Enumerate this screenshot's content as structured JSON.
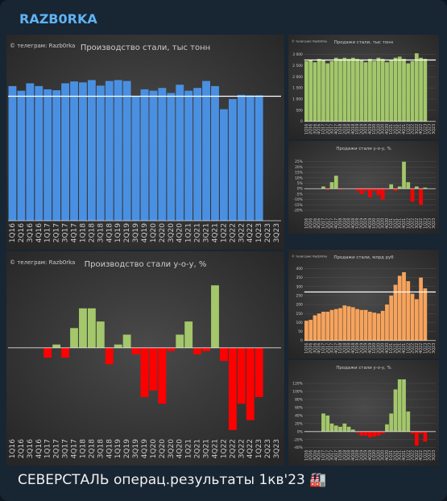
{
  "channel": "RAZB0RKA",
  "caption": "СЕВЕРСТАЛЬ операц.результаты 1кв'23 🏭",
  "chart_data": [
    {
      "type": "bar",
      "title": "Производство стали, тыс тонн",
      "watermark": "© телеграм: Razb0rka",
      "color": "#4a90e2",
      "categories": [
        "1Q16",
        "2Q16",
        "3Q16",
        "4Q16",
        "1Q17",
        "2Q17",
        "3Q17",
        "4Q17",
        "1Q18",
        "2Q18",
        "3Q18",
        "4Q18",
        "1Q19",
        "2Q19",
        "3Q19",
        "4Q19",
        "1Q20",
        "2Q20",
        "3Q20",
        "4Q20",
        "1Q21",
        "2Q21",
        "3Q21",
        "4Q21",
        "1Q22",
        "2Q22",
        "3Q22",
        "4Q22",
        "1Q23",
        "2Q23",
        "3Q23"
      ],
      "values": [
        2910,
        2810,
        2970,
        2910,
        2840,
        2820,
        2970,
        3010,
        2990,
        3040,
        2920,
        3020,
        3040,
        3020,
        2690,
        2840,
        2810,
        2870,
        2760,
        2940,
        2810,
        2870,
        3020,
        2910,
        2410,
        2630,
        2720,
        2710,
        2710,
        null,
        null
      ],
      "reference_line": 2690,
      "ylim": [
        0,
        3500
      ]
    },
    {
      "type": "bar",
      "title": "Производство стали у-о-у, %",
      "watermark": "© телеграм: Razb0rka",
      "color": "#a3c76a",
      "negative_color": "#ff0000",
      "categories": [
        "1Q16",
        "2Q16",
        "3Q16",
        "4Q16",
        "1Q17",
        "2Q17",
        "3Q17",
        "4Q17",
        "1Q18",
        "2Q18",
        "3Q18",
        "4Q18",
        "1Q19",
        "2Q19",
        "3Q19",
        "4Q19",
        "1Q20",
        "2Q20",
        "3Q20",
        "4Q20",
        "1Q21",
        "2Q21",
        "3Q21",
        "4Q21",
        "1Q22",
        "2Q22",
        "3Q22",
        "4Q22",
        "1Q23",
        "2Q23",
        "3Q23"
      ],
      "values": [
        null,
        null,
        null,
        null,
        -3,
        1,
        -3,
        6,
        12,
        12,
        8,
        -5,
        1,
        4,
        -2,
        -15,
        -13,
        -17,
        -1,
        4,
        8,
        -2,
        -1,
        19,
        -4,
        -25,
        -17,
        -22,
        -15,
        null,
        null
      ],
      "ylim": [
        -27,
        22
      ]
    },
    {
      "type": "bar",
      "title": "Продажи стали, тыс тонн",
      "watermark": "© телеграм: Razb0rka",
      "color": "#a3c76a",
      "categories": [
        "1Q16",
        "2Q16",
        "3Q16",
        "4Q16",
        "1Q17",
        "2Q17",
        "3Q17",
        "4Q17",
        "1Q18",
        "2Q18",
        "3Q18",
        "4Q18",
        "1Q19",
        "2Q19",
        "3Q19",
        "4Q19",
        "1Q20",
        "2Q20",
        "3Q20",
        "4Q20",
        "1Q21",
        "2Q21",
        "3Q21",
        "4Q21",
        "1Q22",
        "2Q22",
        "3Q22",
        "4Q22",
        "1Q23",
        "2Q23",
        "3Q23"
      ],
      "values": [
        2700,
        2750,
        2650,
        2800,
        2750,
        2600,
        2700,
        2850,
        2800,
        2850,
        2800,
        2850,
        2800,
        2750,
        2650,
        2800,
        2700,
        2850,
        2800,
        2650,
        2750,
        2850,
        2900,
        2800,
        2600,
        2700,
        3050,
        2850,
        2800,
        null,
        null
      ],
      "reference_line": 2750,
      "ylim": [
        0,
        3200
      ],
      "yticks": [
        0,
        500,
        {
          "value": 1000,
          "label": "1 000"
        },
        {
          "value": 1500,
          "label": "1 500"
        },
        {
          "value": 2000,
          "label": "2 000"
        },
        {
          "value": 2500,
          "label": "2 500"
        },
        {
          "value": 3000,
          "label": "3 000"
        }
      ]
    },
    {
      "type": "bar",
      "title": "Продажи стали у-о-у, %",
      "color": "#a3c76a",
      "negative_color": "#ff0000",
      "categories": [
        "1Q16",
        "2Q16",
        "3Q16",
        "4Q16",
        "1Q17",
        "2Q17",
        "3Q17",
        "4Q17",
        "1Q18",
        "2Q18",
        "3Q18",
        "4Q18",
        "1Q19",
        "2Q19",
        "3Q19",
        "4Q19",
        "1Q20",
        "2Q20",
        "3Q20",
        "4Q20",
        "1Q21",
        "2Q21",
        "3Q21",
        "4Q21",
        "1Q22",
        "2Q22",
        "3Q22",
        "4Q22",
        "1Q23",
        "2Q23",
        "3Q23"
      ],
      "values": [
        null,
        null,
        null,
        null,
        2,
        -1,
        6,
        12,
        -1,
        0,
        0,
        0,
        -2,
        -5,
        -2,
        -8,
        -2,
        -6,
        -10,
        -1,
        4,
        -2,
        2,
        25,
        6,
        -12,
        2,
        -15,
        1,
        null,
        null
      ],
      "ylim": [
        -25,
        30
      ],
      "yticks": [
        {
          "value": -20,
          "label": "-20%"
        },
        {
          "value": -15,
          "label": "-15%"
        },
        {
          "value": -10,
          "label": "-10%"
        },
        {
          "value": -5,
          "label": "-5%"
        },
        {
          "value": 0,
          "label": "0%"
        },
        {
          "value": 5,
          "label": "5%"
        },
        {
          "value": 10,
          "label": "10%"
        },
        {
          "value": 15,
          "label": "15%"
        },
        {
          "value": 20,
          "label": "20%"
        },
        {
          "value": 25,
          "label": "25%"
        }
      ]
    },
    {
      "type": "bar",
      "title": "Продажи стали, млрд руб",
      "watermark": "© телеграм: Razb0rka",
      "color": "#f7a35c",
      "categories": [
        "1Q16",
        "2Q16",
        "3Q16",
        "4Q16",
        "1Q17",
        "2Q17",
        "3Q17",
        "4Q17",
        "1Q18",
        "2Q18",
        "3Q18",
        "4Q18",
        "1Q19",
        "2Q19",
        "3Q19",
        "4Q19",
        "1Q20",
        "2Q20",
        "3Q20",
        "4Q20",
        "1Q21",
        "2Q21",
        "3Q21",
        "4Q21",
        "1Q22",
        "2Q22",
        "3Q22",
        "4Q22",
        "1Q23",
        "2Q23",
        "3Q23"
      ],
      "values": [
        110,
        115,
        140,
        150,
        160,
        160,
        170,
        175,
        180,
        195,
        190,
        185,
        175,
        170,
        170,
        160,
        155,
        150,
        165,
        200,
        250,
        310,
        360,
        380,
        330,
        260,
        230,
        350,
        290,
        null,
        null
      ],
      "reference_line": 270,
      "ylim": [
        0,
        420
      ],
      "yticks": [
        0,
        50,
        100,
        150,
        200,
        250,
        300,
        350,
        400
      ]
    },
    {
      "type": "bar",
      "title": "Продажи стали у-о-у, %",
      "color": "#a3c76a",
      "negative_color": "#ff0000",
      "categories": [
        "1Q16",
        "2Q16",
        "3Q16",
        "4Q16",
        "1Q17",
        "2Q17",
        "3Q17",
        "4Q17",
        "1Q18",
        "2Q18",
        "3Q18",
        "4Q18",
        "1Q19",
        "2Q19",
        "3Q19",
        "4Q19",
        "1Q20",
        "2Q20",
        "3Q20",
        "4Q20",
        "1Q21",
        "2Q21",
        "3Q21",
        "4Q21",
        "1Q22",
        "2Q22",
        "3Q22",
        "4Q22",
        "1Q23",
        "2Q23",
        "3Q23"
      ],
      "values": [
        null,
        null,
        null,
        null,
        45,
        40,
        20,
        15,
        12,
        20,
        12,
        5,
        -3,
        -10,
        -10,
        -14,
        -12,
        -10,
        -5,
        18,
        45,
        105,
        130,
        130,
        50,
        -5,
        -35,
        -5,
        -25,
        null,
        null
      ],
      "ylim": [
        -40,
        140
      ],
      "yticks": [
        {
          "value": -40,
          "label": "-40%"
        },
        {
          "value": -20,
          "label": "-20%"
        },
        {
          "value": 0,
          "label": "0%"
        },
        {
          "value": 20,
          "label": "20%"
        },
        {
          "value": 40,
          "label": "40%"
        },
        {
          "value": 60,
          "label": "60%"
        },
        {
          "value": 80,
          "label": "80%"
        },
        {
          "value": 100,
          "label": "100%"
        },
        {
          "value": 120,
          "label": "120%"
        }
      ]
    }
  ]
}
